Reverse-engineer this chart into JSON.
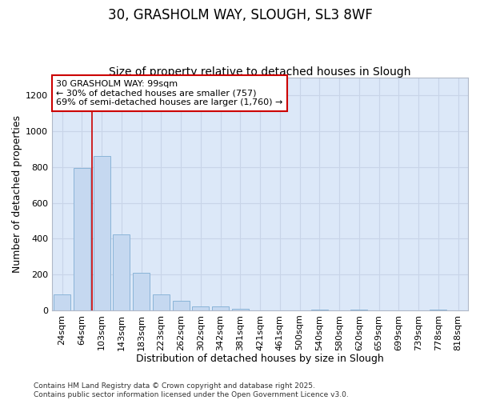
{
  "title_line1": "30, GRASHOLM WAY, SLOUGH, SL3 8WF",
  "title_line2": "Size of property relative to detached houses in Slough",
  "xlabel": "Distribution of detached houses by size in Slough",
  "ylabel": "Number of detached properties",
  "categories": [
    "24sqm",
    "64sqm",
    "103sqm",
    "143sqm",
    "183sqm",
    "223sqm",
    "262sqm",
    "302sqm",
    "342sqm",
    "381sqm",
    "421sqm",
    "461sqm",
    "500sqm",
    "540sqm",
    "580sqm",
    "620sqm",
    "659sqm",
    "699sqm",
    "739sqm",
    "778sqm",
    "818sqm"
  ],
  "values": [
    90,
    793,
    863,
    425,
    210,
    88,
    52,
    22,
    22,
    7,
    0,
    0,
    0,
    5,
    0,
    5,
    0,
    0,
    0,
    5,
    0
  ],
  "bar_color": "#c5d8f0",
  "bar_edge_color": "#8ab4d8",
  "vline_x_index": 2,
  "vline_color": "#cc0000",
  "annotation_text": "30 GRASHOLM WAY: 99sqm\n← 30% of detached houses are smaller (757)\n69% of semi-detached houses are larger (1,760) →",
  "annotation_box_facecolor": "#ffffff",
  "annotation_box_edgecolor": "#cc0000",
  "ylim": [
    0,
    1300
  ],
  "yticks": [
    0,
    200,
    400,
    600,
    800,
    1000,
    1200
  ],
  "grid_color": "#c8d4e8",
  "plot_bg_color": "#dce8f8",
  "fig_bg_color": "#ffffff",
  "footer_line1": "Contains HM Land Registry data © Crown copyright and database right 2025.",
  "footer_line2": "Contains public sector information licensed under the Open Government Licence v3.0.",
  "title1_fontsize": 12,
  "title2_fontsize": 10,
  "tick_fontsize": 8,
  "xlabel_fontsize": 9,
  "ylabel_fontsize": 9,
  "annotation_fontsize": 8,
  "footer_fontsize": 6.5
}
